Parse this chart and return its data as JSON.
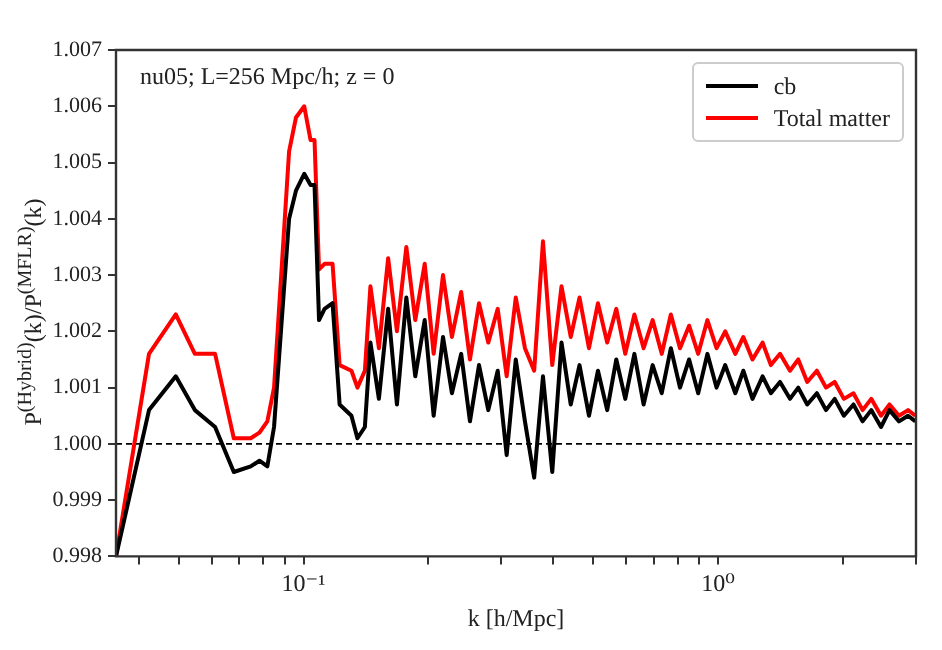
{
  "chart_data": {
    "type": "line",
    "xlabel": "k [h/Mpc]",
    "ylabel": "P$^{(Hybrid)}$(k)/P$^{(MFLR)}$(k)",
    "annotations": [
      "nu05; L=256 Mpc/h; z = 0"
    ],
    "log": "x",
    "legend": "top right",
    "grid": false,
    "xlim": [
      0.0353,
      3.0
    ],
    "xticks": [
      {
        "value": 0.04,
        "label": null
      },
      {
        "value": 0.05,
        "label": null
      },
      {
        "value": 0.06,
        "label": null
      },
      {
        "value": 0.07,
        "label": null
      },
      {
        "value": 0.08,
        "label": null
      },
      {
        "value": 0.09,
        "label": null
      },
      {
        "value": 0.1,
        "label": "10⁻¹"
      },
      {
        "value": 0.2,
        "label": null
      },
      {
        "value": 0.3,
        "label": null
      },
      {
        "value": 0.4,
        "label": null
      },
      {
        "value": 0.5,
        "label": null
      },
      {
        "value": 0.6,
        "label": null
      },
      {
        "value": 0.7,
        "label": null
      },
      {
        "value": 0.8,
        "label": null
      },
      {
        "value": 0.9,
        "label": null
      },
      {
        "value": 1,
        "label": "10⁰"
      },
      {
        "value": 2,
        "label": null
      },
      {
        "value": 3,
        "label": null
      }
    ],
    "ylim": [
      0.998,
      1.007
    ],
    "yticks": [
      0.998,
      0.999,
      {
        "value": 1.0,
        "label": "1.000"
      },
      1.001,
      1.002,
      1.003,
      1.004,
      1.005,
      1.006,
      1.007
    ],
    "ref_lines": [
      {
        "axis": "y",
        "value": 1.0,
        "color": "#000000",
        "line_style": "dashed"
      }
    ],
    "x": [
      0.0353,
      0.0424,
      0.0492,
      0.0547,
      0.0612,
      0.0679,
      0.0746,
      0.0783,
      0.0818,
      0.0849,
      0.0923,
      0.0959,
      0.1004,
      0.104,
      0.1063,
      0.109,
      0.1124,
      0.1175,
      0.1222,
      0.1305,
      0.1349,
      0.1406,
      0.145,
      0.152,
      0.16,
      0.168,
      0.177,
      0.186,
      0.196,
      0.206,
      0.217,
      0.228,
      0.24,
      0.252,
      0.265,
      0.279,
      0.294,
      0.309,
      0.325,
      0.342,
      0.36,
      0.378,
      0.398,
      0.419,
      0.441,
      0.463,
      0.488,
      0.513,
      0.54,
      0.568,
      0.597,
      0.628,
      0.661,
      0.695,
      0.731,
      0.769,
      0.809,
      0.851,
      0.895,
      0.942,
      0.991,
      1.04,
      1.1,
      1.15,
      1.21,
      1.28,
      1.34,
      1.41,
      1.49,
      1.56,
      1.64,
      1.73,
      1.82,
      1.91,
      2.01,
      2.12,
      2.23,
      2.34,
      2.47,
      2.59,
      2.73,
      2.87,
      2.99
    ],
    "series": [
      {
        "name": "cb",
        "color": "#000000",
        "values": [
          0.998,
          1.0006,
          1.0012,
          1.0006,
          1.0003,
          0.9995,
          0.9996,
          0.9997,
          0.9996,
          1.0003,
          1.004,
          1.0045,
          1.0048,
          1.0046,
          1.0046,
          1.0022,
          1.0024,
          1.0025,
          1.0007,
          1.0005,
          1.0001,
          1.0003,
          1.0018,
          1.0008,
          1.0024,
          1.0007,
          1.0026,
          1.0012,
          1.0022,
          1.0005,
          1.0019,
          1.0009,
          1.0016,
          1.0004,
          1.0014,
          1.0006,
          1.0013,
          0.9998,
          1.0015,
          1.0004,
          0.9994,
          1.0012,
          0.9995,
          1.0018,
          1.0007,
          1.0014,
          1.0005,
          1.0013,
          1.0006,
          1.0015,
          1.0008,
          1.0016,
          1.0007,
          1.0014,
          1.0009,
          1.0017,
          1.001,
          1.0015,
          1.0009,
          1.0016,
          1.001,
          1.0014,
          1.0009,
          1.0013,
          1.0008,
          1.0012,
          1.0009,
          1.0011,
          1.0008,
          1.001,
          1.0007,
          1.0009,
          1.0006,
          1.0008,
          1.0005,
          1.0007,
          1.0004,
          1.0006,
          1.0003,
          1.0006,
          1.0004,
          1.0005,
          1.0004
        ]
      },
      {
        "name": "Total matter",
        "color": "#ff0000",
        "values": [
          0.998,
          1.0016,
          1.0023,
          1.0016,
          1.0016,
          1.0001,
          1.0001,
          1.0002,
          1.0004,
          1.001,
          1.0052,
          1.0058,
          1.006,
          1.0054,
          1.0054,
          1.0031,
          1.0032,
          1.0032,
          1.0014,
          1.0013,
          1.001,
          1.0013,
          1.0028,
          1.0017,
          1.0033,
          1.002,
          1.0035,
          1.0022,
          1.0032,
          1.0016,
          1.003,
          1.0019,
          1.0027,
          1.0015,
          1.0025,
          1.0018,
          1.0024,
          1.0012,
          1.0026,
          1.0017,
          1.0013,
          1.0036,
          1.0014,
          1.0028,
          1.0019,
          1.0026,
          1.0017,
          1.0025,
          1.0018,
          1.0024,
          1.0016,
          1.0023,
          1.0017,
          1.0022,
          1.0016,
          1.0023,
          1.0017,
          1.0021,
          1.0016,
          1.0022,
          1.0017,
          1.002,
          1.0016,
          1.0019,
          1.0015,
          1.0018,
          1.0014,
          1.0016,
          1.0013,
          1.0015,
          1.0011,
          1.0013,
          1.001,
          1.0011,
          1.0008,
          1.0009,
          1.0006,
          1.0008,
          1.0005,
          1.0007,
          1.0005,
          1.0006,
          1.0005
        ]
      }
    ]
  }
}
